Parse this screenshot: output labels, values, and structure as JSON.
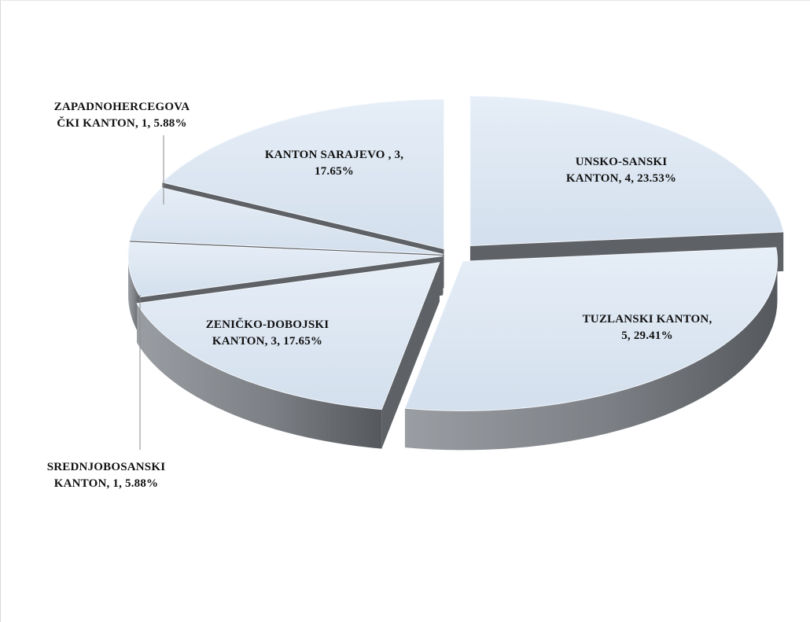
{
  "header": {
    "caption": ""
  },
  "chart_data": {
    "type": "pie",
    "style": "3d-exploded",
    "title": "",
    "slices": [
      {
        "name": "UNSKO-SANSKI KANTON",
        "value": 4,
        "percent": "23.53%",
        "label_lines": [
          "UNSKO-SANSKI",
          "KANTON, 4, 23.53%"
        ]
      },
      {
        "name": "TUZLANSKI KANTON",
        "value": 5,
        "percent": "29.41%",
        "label_lines": [
          "TUZLANSKI KANTON,",
          "5, 29.41%"
        ]
      },
      {
        "name": "ZENIČKO-DOBOJSKI KANTON",
        "value": 3,
        "percent": "17.65%",
        "label_lines": [
          "ZENIČKO-DOBOJSKI",
          "KANTON, 3, 17.65%"
        ]
      },
      {
        "name": "SREDNJOBOSANSKI KANTON",
        "value": 1,
        "percent": "5.88%",
        "label_lines": [
          "SREDNJOBOSANSKI",
          "KANTON, 1, 5.88%"
        ]
      },
      {
        "name": "ZAPADNOHERCEGOVAČKI KANTON",
        "value": 1,
        "percent": "5.88%",
        "label_lines": [
          "ZAPADNOHERCEGOVA",
          "ČKI KANTON, 1, 5.88%"
        ]
      },
      {
        "name": "KANTON SARAJEVO",
        "value": 3,
        "percent": "17.65%",
        "label_lines": [
          "KANTON SARAJEVO , 3,",
          "17.65%"
        ]
      }
    ],
    "colors": {
      "top": "#dce6f1",
      "side": "#7f8388",
      "side_dark": "#5e6166",
      "leader": "#8a8a8a"
    },
    "legend": "none"
  }
}
